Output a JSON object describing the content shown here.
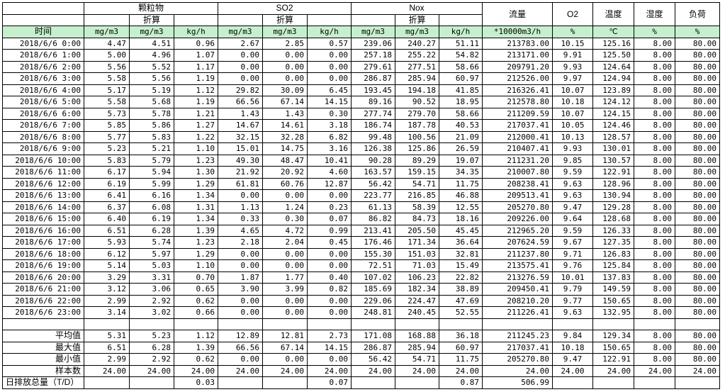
{
  "header": {
    "groups": {
      "pm": "颗粒物",
      "so2": "SO2",
      "nox": "Nox",
      "flow": "流量",
      "o2": "O2",
      "temp": "温度",
      "humidity": "湿度",
      "load": "负荷"
    },
    "converted": "折算",
    "time_label": "时间",
    "units": [
      "mg/m3",
      "mg/m3",
      "kg/h",
      "mg/m3",
      "mg/m3",
      "kg/h",
      "mg/m3",
      "mg/m3",
      "kg/h",
      "*10000m3/h",
      "%",
      "℃",
      "%",
      "%"
    ]
  },
  "rows": [
    [
      "2018/6/6 0:00",
      "4.47",
      "4.51",
      "0.96",
      "2.67",
      "2.85",
      "0.57",
      "239.06",
      "240.27",
      "51.11",
      "213783.00",
      "10.15",
      "125.16",
      "8.00",
      "80.00"
    ],
    [
      "2018/6/6 1:00",
      "5.00",
      "4.96",
      "1.07",
      "0.00",
      "0.00",
      "0.00",
      "257.18",
      "255.22",
      "54.82",
      "213171.00",
      "9.91",
      "125.50",
      "8.00",
      "80.00"
    ],
    [
      "2018/6/6 2:00",
      "5.56",
      "5.52",
      "1.17",
      "0.00",
      "0.00",
      "0.00",
      "279.61",
      "277.51",
      "58.66",
      "209791.20",
      "9.93",
      "124.64",
      "8.00",
      "80.00"
    ],
    [
      "2018/6/6 3:00",
      "5.58",
      "5.56",
      "1.19",
      "0.00",
      "0.00",
      "0.00",
      "286.87",
      "285.94",
      "60.97",
      "212526.00",
      "9.97",
      "124.94",
      "8.00",
      "80.00"
    ],
    [
      "2018/6/6 4:00",
      "5.17",
      "5.19",
      "1.12",
      "29.82",
      "30.09",
      "6.45",
      "193.45",
      "194.18",
      "41.85",
      "216326.41",
      "10.07",
      "123.89",
      "8.00",
      "80.00"
    ],
    [
      "2018/6/6 5:00",
      "5.58",
      "5.68",
      "1.19",
      "66.56",
      "67.14",
      "14.15",
      "89.16",
      "90.52",
      "18.95",
      "212578.80",
      "10.18",
      "124.12",
      "8.00",
      "80.00"
    ],
    [
      "2018/6/6 6:00",
      "5.73",
      "5.78",
      "1.21",
      "1.43",
      "1.43",
      "0.30",
      "277.74",
      "279.70",
      "58.66",
      "211209.59",
      "10.07",
      "124.15",
      "8.00",
      "80.00"
    ],
    [
      "2018/6/6 7:00",
      "5.85",
      "5.86",
      "1.27",
      "14.67",
      "14.61",
      "3.18",
      "186.74",
      "187.78",
      "40.53",
      "217037.41",
      "10.05",
      "124.46",
      "8.00",
      "80.00"
    ],
    [
      "2018/6/6 8:00",
      "5.77",
      "5.83",
      "1.22",
      "32.15",
      "32.28",
      "6.82",
      "99.48",
      "100.56",
      "21.09",
      "212000.41",
      "10.13",
      "128.57",
      "8.00",
      "80.00"
    ],
    [
      "2018/6/6 9:00",
      "5.23",
      "5.21",
      "1.10",
      "15.01",
      "14.75",
      "3.16",
      "126.38",
      "125.86",
      "26.59",
      "210407.41",
      "9.93",
      "130.01",
      "8.00",
      "80.00"
    ],
    [
      "2018/6/6 10:00",
      "5.83",
      "5.79",
      "1.23",
      "49.30",
      "48.47",
      "10.41",
      "90.28",
      "89.29",
      "19.07",
      "211231.20",
      "9.85",
      "130.57",
      "8.00",
      "80.00"
    ],
    [
      "2018/6/6 11:00",
      "6.17",
      "5.94",
      "1.30",
      "21.92",
      "20.92",
      "4.60",
      "163.57",
      "159.15",
      "34.35",
      "210007.80",
      "9.59",
      "122.91",
      "8.00",
      "80.00"
    ],
    [
      "2018/6/6 12:00",
      "6.19",
      "5.99",
      "1.29",
      "61.81",
      "60.76",
      "12.87",
      "56.42",
      "54.71",
      "11.75",
      "208238.41",
      "9.63",
      "128.96",
      "8.00",
      "80.00"
    ],
    [
      "2018/6/6 13:00",
      "6.41",
      "6.16",
      "1.34",
      "0.00",
      "0.00",
      "0.00",
      "223.77",
      "216.85",
      "46.88",
      "209513.41",
      "9.63",
      "130.94",
      "8.00",
      "80.00"
    ],
    [
      "2018/6/6 14:00",
      "6.37",
      "6.08",
      "1.31",
      "1.13",
      "1.24",
      "0.23",
      "61.13",
      "58.39",
      "12.55",
      "205270.80",
      "9.47",
      "129.28",
      "8.00",
      "80.00"
    ],
    [
      "2018/6/6 15:00",
      "6.40",
      "6.19",
      "1.34",
      "0.33",
      "0.30",
      "0.07",
      "86.82",
      "84.73",
      "18.16",
      "209226.00",
      "9.64",
      "128.68",
      "8.00",
      "80.00"
    ],
    [
      "2018/6/6 16:00",
      "6.51",
      "6.28",
      "1.39",
      "4.65",
      "4.72",
      "0.99",
      "213.41",
      "205.50",
      "45.45",
      "212965.20",
      "9.59",
      "126.33",
      "8.00",
      "80.00"
    ],
    [
      "2018/6/6 17:00",
      "5.93",
      "5.74",
      "1.23",
      "2.18",
      "2.04",
      "0.45",
      "176.46",
      "171.34",
      "36.64",
      "207624.59",
      "9.67",
      "127.35",
      "8.00",
      "80.00"
    ],
    [
      "2018/6/6 18:00",
      "6.12",
      "5.97",
      "1.29",
      "0.00",
      "0.00",
      "0.00",
      "155.30",
      "151.03",
      "32.81",
      "211237.80",
      "9.71",
      "126.83",
      "8.00",
      "80.00"
    ],
    [
      "2018/6/6 19:00",
      "5.14",
      "5.03",
      "1.10",
      "0.00",
      "0.00",
      "0.00",
      "72.51",
      "71.03",
      "15.49",
      "213575.41",
      "9.76",
      "125.84",
      "8.00",
      "80.00"
    ],
    [
      "2018/6/6 20:00",
      "3.29",
      "3.31",
      "0.70",
      "1.87",
      "1.77",
      "0.40",
      "107.02",
      "106.23",
      "22.82",
      "213276.59",
      "10.01",
      "137.83",
      "8.00",
      "80.00"
    ],
    [
      "2018/6/6 21:00",
      "3.12",
      "3.06",
      "0.65",
      "3.90",
      "3.99",
      "0.82",
      "185.69",
      "182.34",
      "38.89",
      "209450.41",
      "9.79",
      "149.59",
      "8.00",
      "80.00"
    ],
    [
      "2018/6/6 22:00",
      "2.99",
      "2.92",
      "0.62",
      "0.00",
      "0.00",
      "0.00",
      "229.06",
      "224.47",
      "47.69",
      "208210.20",
      "9.77",
      "150.65",
      "8.00",
      "80.00"
    ],
    [
      "2018/6/6 23:00",
      "3.14",
      "3.02",
      "0.66",
      "0.00",
      "0.00",
      "0.00",
      "248.81",
      "240.45",
      "52.55",
      "211226.41",
      "9.63",
      "132.95",
      "8.00",
      "80.00"
    ]
  ],
  "summary": [
    [
      "平均值",
      "5.31",
      "5.23",
      "1.12",
      "12.89",
      "12.81",
      "2.73",
      "171.08",
      "168.88",
      "36.18",
      "211245.23",
      "9.84",
      "129.34",
      "8.00",
      "80.00"
    ],
    [
      "最大值",
      "6.51",
      "6.28",
      "1.39",
      "66.56",
      "67.14",
      "14.15",
      "286.87",
      "285.94",
      "60.97",
      "217037.41",
      "10.18",
      "150.65",
      "8.00",
      "80.00"
    ],
    [
      "最小值",
      "2.99",
      "2.92",
      "0.62",
      "0.00",
      "0.00",
      "0.00",
      "56.42",
      "54.71",
      "11.75",
      "205270.80",
      "9.47",
      "122.91",
      "8.00",
      "80.00"
    ],
    [
      "样本数",
      "24.00",
      "24.00",
      "24.00",
      "24.00",
      "24.00",
      "24.00",
      "24.00",
      "24.00",
      "24.00",
      "24.00",
      "24.00",
      "24.00",
      "24.00",
      "24.00"
    ]
  ],
  "daily_total": [
    "日排放总量（T/D）",
    "",
    "",
    "0.03",
    "",
    "",
    "0.07",
    "",
    "",
    "0.87",
    "506.99",
    "",
    "",
    "",
    ""
  ],
  "colors": {
    "unit_row_bg": "#c6efce",
    "grid": "#000000"
  }
}
